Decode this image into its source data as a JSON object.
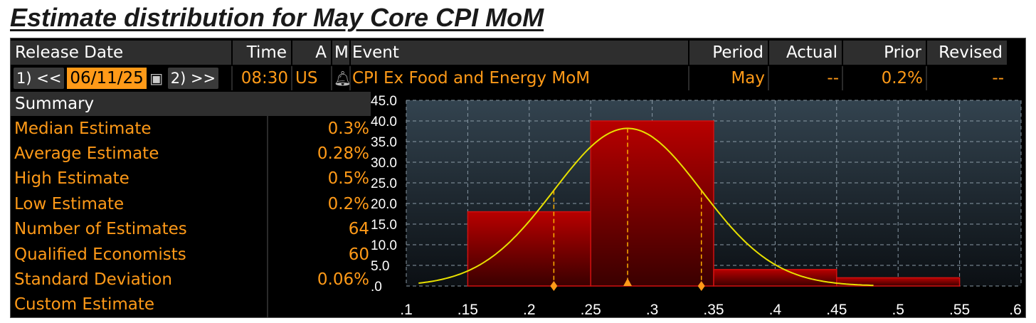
{
  "title": "Estimate distribution for May Core CPI MoM",
  "header": {
    "release_date": "Release Date",
    "time": "Time",
    "a": "A",
    "m": "M",
    "event": "Event",
    "period": "Period",
    "actual": "Actual",
    "prior": "Prior",
    "revised": "Revised"
  },
  "row": {
    "prev_btn": "1) <<",
    "date": "06/11/25",
    "next_btn": "2) >>",
    "time": "08:30",
    "country": "US",
    "event": "CPI Ex Food and Energy MoM",
    "period": "May",
    "actual": "--",
    "prior": "0.2%",
    "revised": "--"
  },
  "icons": {
    "calendar": "calendar-icon",
    "bell": "bell-icon"
  },
  "summary": {
    "heading": "Summary",
    "items": [
      {
        "label": "Median Estimate",
        "value": "0.3%"
      },
      {
        "label": "Average Estimate",
        "value": "0.28%"
      },
      {
        "label": "High Estimate",
        "value": "0.5%"
      },
      {
        "label": "Low Estimate",
        "value": "0.2%"
      },
      {
        "label": "Number of Estimates",
        "value": "64"
      },
      {
        "label": "Qualified Economists",
        "value": "60"
      },
      {
        "label": "Standard Deviation",
        "value": "0.06%"
      },
      {
        "label": "Custom Estimate",
        "value": ""
      }
    ]
  },
  "colors": {
    "orange": "#ff9a18",
    "cyan": "#2dc3ff",
    "curve": "#e8e000",
    "bar": "#8a0000"
  },
  "chart_data": {
    "type": "bar",
    "bins": [
      {
        "x0": 0.15,
        "x1": 0.25,
        "y": 18
      },
      {
        "x0": 0.25,
        "x1": 0.35,
        "y": 40
      },
      {
        "x0": 0.35,
        "x1": 0.45,
        "y": 4
      },
      {
        "x0": 0.45,
        "x1": 0.55,
        "y": 2
      }
    ],
    "xlim": [
      0.1,
      0.6
    ],
    "ylim": [
      0,
      45
    ],
    "x_ticks": [
      ".1",
      ".15",
      ".2",
      ".25",
      ".3",
      ".35",
      ".4",
      ".45",
      ".5",
      ".55",
      ".6"
    ],
    "x_tick_values": [
      0.1,
      0.15,
      0.2,
      0.25,
      0.3,
      0.35,
      0.4,
      0.45,
      0.5,
      0.55,
      0.6
    ],
    "y_ticks": [
      ".0",
      "5.0",
      "10.0",
      "15.0",
      "20.0",
      "25.0",
      "30.0",
      "35.0",
      "40.0",
      "45.0"
    ],
    "y_tick_values": [
      0,
      5,
      10,
      15,
      20,
      25,
      30,
      35,
      40,
      45
    ],
    "curve": {
      "mean": 0.28,
      "sd": 0.06,
      "peak": 38.2,
      "x_from": 0.11,
      "x_to": 0.48
    },
    "markers": [
      0.22,
      0.28,
      0.34
    ],
    "grid": true
  }
}
